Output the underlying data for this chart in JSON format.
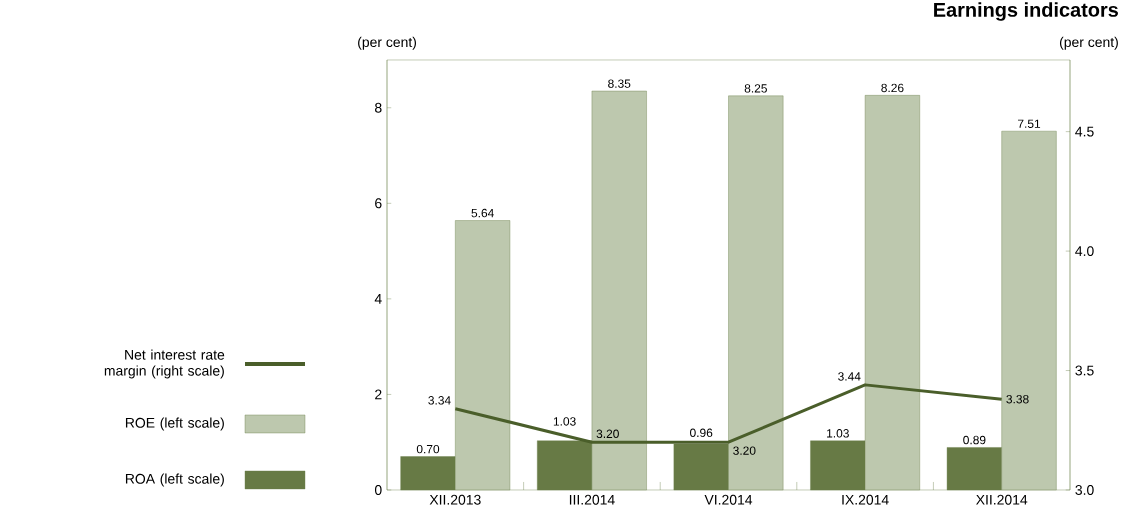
{
  "chart_data": {
    "type": "bar",
    "title": "Earnings indicators",
    "ylabel": "(per cent)",
    "y2label": "(per cent)",
    "categories": [
      "XII.2013",
      "III.2014",
      "VI.2014",
      "IX.2014",
      "XII.2014"
    ],
    "series": [
      {
        "name": "ROA  (left scale)",
        "color": "#677a45",
        "values": [
          0.7,
          1.03,
          0.96,
          1.03,
          0.89
        ],
        "value_labels": [
          "0.70",
          "1.03",
          "0.96",
          "1.03",
          "0.89"
        ]
      },
      {
        "name": "ROE  (left scale)",
        "color": "#bdc8ae",
        "values": [
          5.64,
          8.35,
          8.25,
          8.26,
          7.51
        ],
        "value_labels": [
          "5.64",
          "8.35",
          "8.25",
          "8.26",
          "7.51"
        ]
      },
      {
        "name": "Net interest rate margin (right scale)",
        "type": "line",
        "axis": "y2",
        "color": "#4a5e2a",
        "values": [
          3.34,
          3.2,
          3.2,
          3.44,
          3.38
        ],
        "value_labels": [
          "3.34",
          "3.20",
          "3.20",
          "3.44",
          "3.38"
        ]
      }
    ],
    "ylim": [
      0,
      9
    ],
    "yticks": [
      0,
      2,
      4,
      6,
      8
    ],
    "y2lim": [
      3.0,
      4.8
    ],
    "y2ticks": [
      {
        "value": 3.0,
        "label": "3.0"
      },
      {
        "value": 3.5,
        "label": "3.5"
      },
      {
        "value": 4.0,
        "label": "4.0"
      },
      {
        "value": 4.5,
        "label": "4.5"
      }
    ],
    "legend": "left"
  }
}
